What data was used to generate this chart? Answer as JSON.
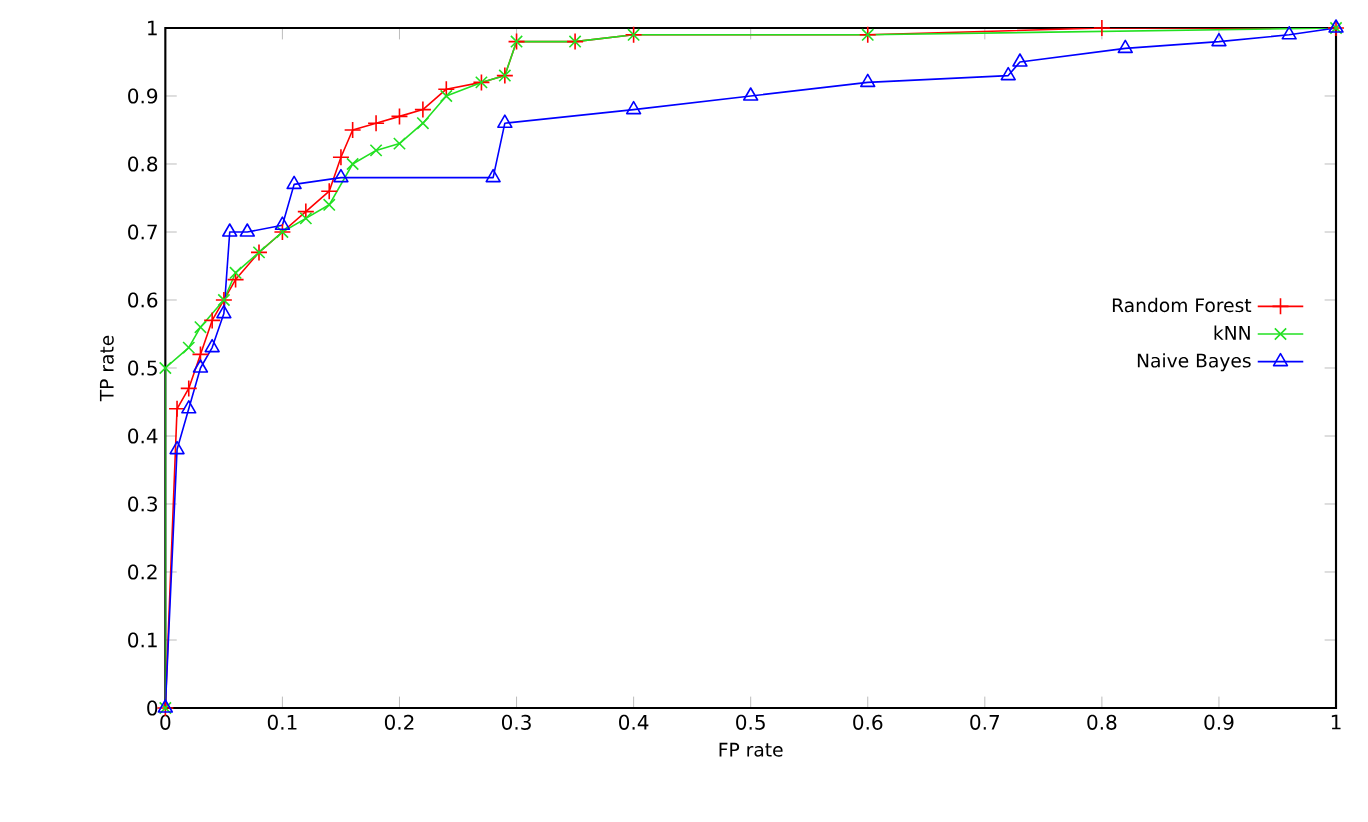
{
  "chart_data": {
    "type": "line",
    "xlabel": "FP rate",
    "ylabel": "TP rate",
    "xlim": [
      0,
      1
    ],
    "ylim": [
      0,
      1
    ],
    "xticks": [
      0,
      0.1,
      0.2,
      0.3,
      0.4,
      0.5,
      0.6,
      0.7,
      0.8,
      0.9,
      1
    ],
    "yticks": [
      0,
      0.1,
      0.2,
      0.3,
      0.4,
      0.5,
      0.6,
      0.7,
      0.8,
      0.9,
      1
    ],
    "grid": false,
    "legend": "right",
    "series": [
      {
        "name": "Random Forest",
        "color": "#ff0000",
        "marker": "plus",
        "x": [
          0,
          0.01,
          0.02,
          0.03,
          0.04,
          0.05,
          0.06,
          0.08,
          0.1,
          0.12,
          0.14,
          0.15,
          0.16,
          0.18,
          0.2,
          0.22,
          0.24,
          0.27,
          0.29,
          0.3,
          0.35,
          0.4,
          0.6,
          0.8,
          1
        ],
        "values": [
          0,
          0.44,
          0.47,
          0.52,
          0.57,
          0.6,
          0.63,
          0.67,
          0.7,
          0.73,
          0.76,
          0.81,
          0.85,
          0.86,
          0.87,
          0.88,
          0.91,
          0.92,
          0.93,
          0.98,
          0.98,
          0.99,
          0.99,
          1,
          1
        ]
      },
      {
        "name": "kNN",
        "color": "#22e022",
        "marker": "cross",
        "x": [
          0,
          0,
          0.02,
          0.03,
          0.05,
          0.06,
          0.08,
          0.1,
          0.12,
          0.14,
          0.16,
          0.18,
          0.2,
          0.22,
          0.24,
          0.27,
          0.29,
          0.3,
          0.35,
          0.4,
          0.6,
          1
        ],
        "values": [
          0,
          0.5,
          0.53,
          0.56,
          0.6,
          0.64,
          0.67,
          0.7,
          0.72,
          0.74,
          0.8,
          0.82,
          0.83,
          0.86,
          0.9,
          0.92,
          0.93,
          0.98,
          0.98,
          0.99,
          0.99,
          1
        ]
      },
      {
        "name": "Naive Bayes",
        "color": "#0000ff",
        "marker": "triangle",
        "x": [
          0,
          0.01,
          0.02,
          0.03,
          0.04,
          0.05,
          0.055,
          0.07,
          0.1,
          0.11,
          0.15,
          0.28,
          0.29,
          0.4,
          0.5,
          0.6,
          0.72,
          0.73,
          0.82,
          0.9,
          0.96,
          1
        ],
        "values": [
          0,
          0.38,
          0.44,
          0.5,
          0.53,
          0.58,
          0.7,
          0.7,
          0.71,
          0.77,
          0.78,
          0.78,
          0.86,
          0.88,
          0.9,
          0.92,
          0.93,
          0.95,
          0.97,
          0.98,
          0.99,
          1
        ]
      }
    ]
  }
}
